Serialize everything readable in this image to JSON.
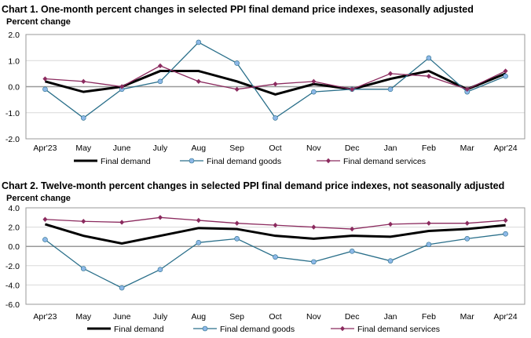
{
  "chart_data": [
    {
      "type": "line",
      "title": "Chart 1. One-month percent changes in selected PPI final demand price indexes, seasonally adjusted",
      "ylabel": "Percent change",
      "categories": [
        "Apr'23",
        "May",
        "June",
        "July",
        "Aug",
        "Sep",
        "Oct",
        "Nov",
        "Dec",
        "Jan",
        "Feb",
        "Mar",
        "Apr'24"
      ],
      "ylim": [
        -2.0,
        2.0
      ],
      "yticks": [
        "2.0",
        "1.0",
        "0.0",
        "-1.0",
        "-2.0"
      ],
      "ytick_values": [
        2,
        1,
        0,
        -1,
        -2
      ],
      "grid": true,
      "legend": "bottom",
      "series": [
        {
          "name": "Final demand",
          "color": "#000000",
          "marker": "none",
          "values": [
            0.2,
            -0.2,
            0.0,
            0.6,
            0.6,
            0.2,
            -0.3,
            0.1,
            -0.1,
            0.3,
            0.6,
            -0.1,
            0.5
          ]
        },
        {
          "name": "Final demand goods",
          "color": "#2a6f8a",
          "marker": "circle",
          "marker_color": "#8db8e8",
          "values": [
            -0.1,
            -1.2,
            -0.1,
            0.2,
            1.7,
            0.9,
            -1.2,
            -0.2,
            -0.1,
            -0.1,
            1.1,
            -0.2,
            0.4
          ]
        },
        {
          "name": "Final demand services",
          "color": "#8b2a5e",
          "marker": "diamond",
          "marker_color": "#8b2a5e",
          "values": [
            0.3,
            0.2,
            0.0,
            0.8,
            0.2,
            -0.1,
            0.1,
            0.2,
            -0.1,
            0.5,
            0.4,
            -0.1,
            0.6
          ]
        }
      ]
    },
    {
      "type": "line",
      "title": "Chart 2. Twelve-month percent changes in selected PPI final demand price indexes, not seasonally adjusted",
      "ylabel": "Percent change",
      "categories": [
        "Apr'23",
        "May",
        "June",
        "July",
        "Aug",
        "Sep",
        "Oct",
        "Nov",
        "Dec",
        "Jan",
        "Feb",
        "Mar",
        "Apr'24"
      ],
      "ylim": [
        -6.0,
        4.0
      ],
      "yticks": [
        "4.0",
        "2.0",
        "0.0",
        "-2.0",
        "-4.0",
        "-6.0"
      ],
      "ytick_values": [
        4,
        2,
        0,
        -2,
        -4,
        -6
      ],
      "grid": true,
      "legend": "bottom",
      "series": [
        {
          "name": "Final demand",
          "color": "#000000",
          "marker": "none",
          "values": [
            2.3,
            1.1,
            0.3,
            1.1,
            1.9,
            1.8,
            1.1,
            0.8,
            1.1,
            1.0,
            1.6,
            1.8,
            2.2
          ]
        },
        {
          "name": "Final demand goods",
          "color": "#2a6f8a",
          "marker": "circle",
          "marker_color": "#8db8e8",
          "values": [
            0.7,
            -2.3,
            -4.3,
            -2.4,
            0.4,
            0.8,
            -1.1,
            -1.6,
            -0.5,
            -1.5,
            0.2,
            0.8,
            1.3
          ]
        },
        {
          "name": "Final demand services",
          "color": "#8b2a5e",
          "marker": "diamond",
          "marker_color": "#8b2a5e",
          "values": [
            2.8,
            2.6,
            2.5,
            3.0,
            2.7,
            2.4,
            2.2,
            2.0,
            1.8,
            2.3,
            2.4,
            2.4,
            2.7
          ]
        }
      ]
    }
  ]
}
